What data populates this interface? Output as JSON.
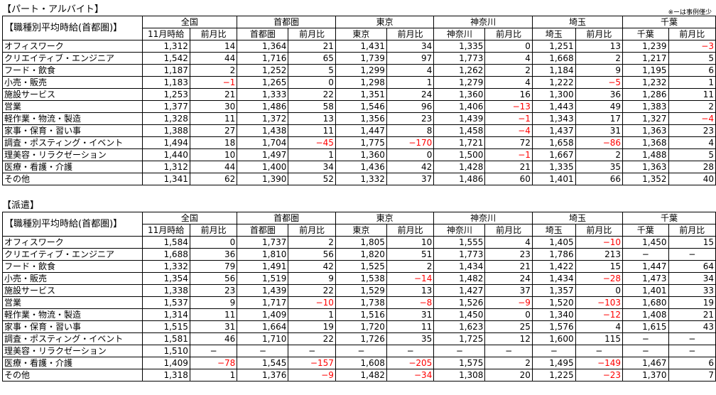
{
  "note": "※ーは事例僅少",
  "sections": [
    {
      "title": "【パート・アルバイト】",
      "corner": "【職種別平均時給(首都圏)】",
      "regions": [
        "全国",
        "首都圏",
        "東京",
        "神奈川",
        "埼玉",
        "千葉"
      ],
      "subheaders": [
        "11月時給",
        "前月比",
        "首都圏",
        "前月比",
        "東京",
        "前月比",
        "神奈川",
        "前月比",
        "埼玉",
        "前月比",
        "千葉",
        "前月比"
      ],
      "rows": [
        {
          "category": "オフィスワーク",
          "values": [
            "1,312",
            "14",
            "1,364",
            "21",
            "1,431",
            "34",
            "1,335",
            "0",
            "1,251",
            "13",
            "1,239",
            "−3"
          ]
        },
        {
          "category": "クリエイティブ・エンジニア",
          "values": [
            "1,542",
            "44",
            "1,716",
            "65",
            "1,739",
            "97",
            "1,773",
            "4",
            "1,668",
            "2",
            "1,217",
            "5"
          ]
        },
        {
          "category": "フード・飲食",
          "values": [
            "1,187",
            "2",
            "1,252",
            "5",
            "1,299",
            "4",
            "1,262",
            "2",
            "1,184",
            "9",
            "1,195",
            "6"
          ]
        },
        {
          "category": "小売・販売",
          "values": [
            "1,183",
            "−1",
            "1,265",
            "0",
            "1,298",
            "1",
            "1,279",
            "4",
            "1,222",
            "−5",
            "1,232",
            "1"
          ]
        },
        {
          "category": "施設サービス",
          "values": [
            "1,253",
            "21",
            "1,333",
            "22",
            "1,351",
            "24",
            "1,360",
            "16",
            "1,300",
            "36",
            "1,286",
            "11"
          ]
        },
        {
          "category": "営業",
          "values": [
            "1,377",
            "30",
            "1,486",
            "58",
            "1,546",
            "96",
            "1,406",
            "−13",
            "1,443",
            "49",
            "1,383",
            "2"
          ]
        },
        {
          "category": "軽作業・物流・製造",
          "values": [
            "1,328",
            "11",
            "1,372",
            "13",
            "1,356",
            "23",
            "1,439",
            "−1",
            "1,343",
            "17",
            "1,327",
            "−4"
          ]
        },
        {
          "category": "家事・保育・習い事",
          "values": [
            "1,388",
            "27",
            "1,438",
            "11",
            "1,447",
            "8",
            "1,458",
            "−4",
            "1,437",
            "31",
            "1,363",
            "23"
          ]
        },
        {
          "category": "調査・ポスティング・イベント",
          "values": [
            "1,494",
            "18",
            "1,704",
            "−45",
            "1,775",
            "−170",
            "1,721",
            "72",
            "1,658",
            "−86",
            "1,368",
            "4"
          ]
        },
        {
          "category": "理美容・リラクゼーション",
          "values": [
            "1,440",
            "10",
            "1,497",
            "1",
            "1,360",
            "0",
            "1,500",
            "−1",
            "1,667",
            "2",
            "1,488",
            "5"
          ]
        },
        {
          "category": "医療・看護・介護",
          "values": [
            "1,312",
            "44",
            "1,400",
            "34",
            "1,436",
            "42",
            "1,428",
            "21",
            "1,335",
            "35",
            "1,363",
            "28"
          ]
        },
        {
          "category": "その他",
          "values": [
            "1,341",
            "62",
            "1,390",
            "52",
            "1,332",
            "37",
            "1,486",
            "60",
            "1,401",
            "66",
            "1,352",
            "40"
          ]
        }
      ]
    },
    {
      "title": "【派遣】",
      "corner": "【職種別平均時給(首都圏)】",
      "regions": [
        "全国",
        "首都圏",
        "東京",
        "神奈川",
        "埼玉",
        "千葉"
      ],
      "subheaders": [
        "11月時給",
        "前月比",
        "首都圏",
        "前月比",
        "東京",
        "前月比",
        "神奈川",
        "前月比",
        "埼玉",
        "前月比",
        "千葉",
        "前月比"
      ],
      "rows": [
        {
          "category": "オフィスワーク",
          "values": [
            "1,584",
            "0",
            "1,737",
            "2",
            "1,805",
            "10",
            "1,555",
            "4",
            "1,405",
            "−10",
            "1,450",
            "15"
          ]
        },
        {
          "category": "クリエイティブ・エンジニア",
          "values": [
            "1,688",
            "36",
            "1,810",
            "56",
            "1,820",
            "51",
            "1,773",
            "23",
            "1,786",
            "213",
            "−",
            "−"
          ]
        },
        {
          "category": "フード・飲食",
          "values": [
            "1,332",
            "79",
            "1,491",
            "42",
            "1,525",
            "2",
            "1,434",
            "21",
            "1,422",
            "15",
            "1,447",
            "64"
          ]
        },
        {
          "category": "小売・販売",
          "values": [
            "1,354",
            "56",
            "1,519",
            "9",
            "1,538",
            "−14",
            "1,482",
            "24",
            "1,434",
            "−28",
            "1,473",
            "34"
          ]
        },
        {
          "category": "施設サービス",
          "values": [
            "1,338",
            "23",
            "1,439",
            "22",
            "1,529",
            "13",
            "1,427",
            "37",
            "1,357",
            "0",
            "1,401",
            "33"
          ]
        },
        {
          "category": "営業",
          "values": [
            "1,537",
            "9",
            "1,717",
            "−10",
            "1,738",
            "−8",
            "1,526",
            "−9",
            "1,520",
            "−103",
            "1,680",
            "19"
          ]
        },
        {
          "category": "軽作業・物流・製造",
          "values": [
            "1,314",
            "11",
            "1,409",
            "1",
            "1,516",
            "31",
            "1,450",
            "0",
            "1,340",
            "−12",
            "1,408",
            "21"
          ]
        },
        {
          "category": "家事・保育・習い事",
          "values": [
            "1,515",
            "31",
            "1,664",
            "19",
            "1,720",
            "11",
            "1,623",
            "25",
            "1,576",
            "4",
            "1,615",
            "43"
          ]
        },
        {
          "category": "調査・ポスティング・イベント",
          "values": [
            "1,581",
            "46",
            "1,710",
            "22",
            "1,726",
            "35",
            "1,725",
            "12",
            "1,600",
            "115",
            "−",
            "−"
          ]
        },
        {
          "category": "理美容・リラクゼーション",
          "values": [
            "1,510",
            "−",
            "−",
            "−",
            "−",
            "−",
            "−",
            "−",
            "−",
            "−",
            "−",
            "−"
          ]
        },
        {
          "category": "医療・看護・介護",
          "values": [
            "1,409",
            "−78",
            "1,545",
            "−157",
            "1,608",
            "−205",
            "1,575",
            "2",
            "1,495",
            "−149",
            "1,467",
            "6"
          ]
        },
        {
          "category": "その他",
          "values": [
            "1,318",
            "1",
            "1,376",
            "−9",
            "1,482",
            "−34",
            "1,308",
            "20",
            "1,225",
            "−23",
            "1,370",
            "7"
          ]
        }
      ]
    }
  ],
  "colors": {
    "negative": "#ff0000",
    "text": "#000000",
    "border": "#000000"
  }
}
